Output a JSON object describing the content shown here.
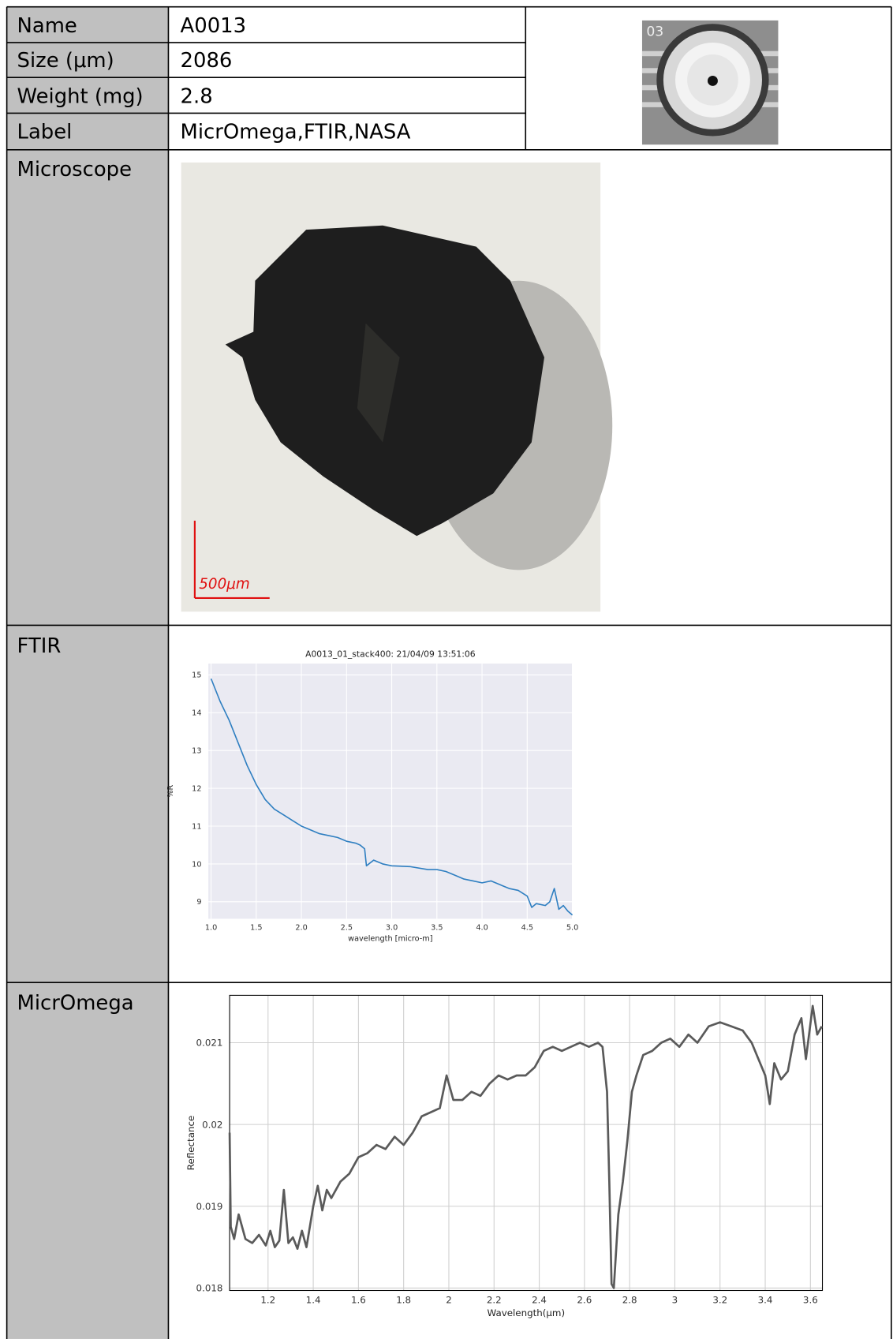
{
  "table": {
    "rows": [
      [
        "Name",
        "A0013"
      ],
      [
        "Size (μm)",
        2086
      ],
      [
        "Weight (mg)",
        2.8
      ],
      [
        "Label",
        "MicrOmega,FTIR,NASA"
      ]
    ],
    "sections": [
      "Microscope",
      "FTIR",
      "MicrOmega"
    ]
  },
  "images": {
    "thumbnail_label": "03",
    "scale_bar": "500μm"
  },
  "chart_data": [
    {
      "type": "line",
      "title": "A0013_01_stack400:  21/04/09 13:51:06",
      "x_label": "wavelength [micro-m]",
      "y_label": "%R",
      "background": "#eaeaf2",
      "grid": true,
      "grid_color": "#ffffff",
      "frame": false,
      "x": [
        1.0,
        1.1,
        1.2,
        1.3,
        1.4,
        1.5,
        1.6,
        1.7,
        1.8,
        1.9,
        2.0,
        2.1,
        2.2,
        2.3,
        2.4,
        2.5,
        2.6,
        2.65,
        2.7,
        2.72,
        2.8,
        2.9,
        3.0,
        3.2,
        3.4,
        3.5,
        3.6,
        3.7,
        3.8,
        3.9,
        4.0,
        4.1,
        4.2,
        4.3,
        4.4,
        4.5,
        4.55,
        4.6,
        4.7,
        4.75,
        4.8,
        4.85,
        4.9,
        4.95,
        5.0
      ],
      "series": [
        {
          "color": "#2f7fc1",
          "values": [
            14.9,
            14.3,
            13.8,
            13.2,
            12.6,
            12.1,
            11.7,
            11.45,
            11.3,
            11.15,
            11.0,
            10.9,
            10.8,
            10.75,
            10.7,
            10.6,
            10.55,
            10.5,
            10.4,
            9.95,
            10.1,
            10.0,
            9.95,
            9.93,
            9.85,
            9.85,
            9.8,
            9.7,
            9.6,
            9.55,
            9.5,
            9.55,
            9.45,
            9.35,
            9.3,
            9.15,
            8.85,
            8.95,
            8.9,
            9.0,
            9.35,
            8.8,
            8.9,
            8.75,
            8.65
          ]
        }
      ],
      "xlim": [
        0.97,
        5.0
      ],
      "ylim": [
        8.55,
        15.3
      ],
      "xticks": [
        {
          "value": 1,
          "label": "1.0"
        },
        1.5,
        {
          "value": 2,
          "label": "2.0"
        },
        2.5,
        {
          "value": 3,
          "label": "3.0"
        },
        3.5,
        {
          "value": 4,
          "label": "4.0"
        },
        4.5,
        {
          "value": 5,
          "label": "5.0"
        }
      ],
      "yticks": [
        9,
        10,
        11,
        12,
        13,
        14,
        15
      ]
    },
    {
      "type": "line",
      "x_label": "Wavelength(μm)",
      "y_label": "Reflectance",
      "background": "#ffffff",
      "grid": true,
      "grid_color": "#cfcfcf",
      "frame": true,
      "x": [
        1.03,
        1.035,
        1.05,
        1.07,
        1.1,
        1.13,
        1.16,
        1.19,
        1.21,
        1.23,
        1.25,
        1.27,
        1.29,
        1.31,
        1.33,
        1.35,
        1.37,
        1.4,
        1.42,
        1.44,
        1.46,
        1.48,
        1.52,
        1.56,
        1.6,
        1.64,
        1.68,
        1.72,
        1.76,
        1.8,
        1.84,
        1.88,
        1.92,
        1.96,
        1.99,
        2.02,
        2.06,
        2.1,
        2.14,
        2.18,
        2.22,
        2.26,
        2.3,
        2.34,
        2.38,
        2.42,
        2.46,
        2.5,
        2.54,
        2.58,
        2.62,
        2.66,
        2.68,
        2.7,
        2.71,
        2.72,
        2.73,
        2.75,
        2.77,
        2.79,
        2.81,
        2.83,
        2.86,
        2.9,
        2.94,
        2.98,
        3.02,
        3.06,
        3.1,
        3.15,
        3.2,
        3.25,
        3.3,
        3.34,
        3.37,
        3.4,
        3.42,
        3.44,
        3.47,
        3.5,
        3.53,
        3.56,
        3.58,
        3.61,
        3.63,
        3.65
      ],
      "series": [
        {
          "color": "#5a5a5a",
          "values": [
            0.0199,
            0.01875,
            0.0186,
            0.0189,
            0.0186,
            0.01855,
            0.01865,
            0.01852,
            0.0187,
            0.0185,
            0.01858,
            0.0192,
            0.01855,
            0.01862,
            0.01848,
            0.0187,
            0.0185,
            0.019,
            0.01925,
            0.01895,
            0.0192,
            0.0191,
            0.0193,
            0.0194,
            0.0196,
            0.01965,
            0.01975,
            0.0197,
            0.01985,
            0.01975,
            0.0199,
            0.0201,
            0.02015,
            0.0202,
            0.0206,
            0.0203,
            0.0203,
            0.0204,
            0.02035,
            0.0205,
            0.0206,
            0.02055,
            0.0206,
            0.0206,
            0.0207,
            0.0209,
            0.02095,
            0.0209,
            0.02095,
            0.021,
            0.02095,
            0.021,
            0.02095,
            0.0204,
            0.0193,
            0.01805,
            0.018,
            0.0189,
            0.0193,
            0.0198,
            0.0204,
            0.0206,
            0.02085,
            0.0209,
            0.021,
            0.02105,
            0.02095,
            0.0211,
            0.021,
            0.0212,
            0.02125,
            0.0212,
            0.02115,
            0.021,
            0.0208,
            0.0206,
            0.02025,
            0.02075,
            0.02055,
            0.02065,
            0.0211,
            0.0213,
            0.0208,
            0.02145,
            0.0211,
            0.0212
          ]
        }
      ],
      "xlim": [
        1.03,
        3.653
      ],
      "ylim": [
        0.01797,
        0.02158
      ],
      "xticks": [
        1.2,
        1.4,
        1.6,
        1.8,
        2,
        2.2,
        2.4,
        2.6,
        2.8,
        3,
        3.2,
        3.4,
        3.6
      ],
      "yticks": [
        0.018,
        0.019,
        0.02,
        0.021
      ]
    }
  ]
}
